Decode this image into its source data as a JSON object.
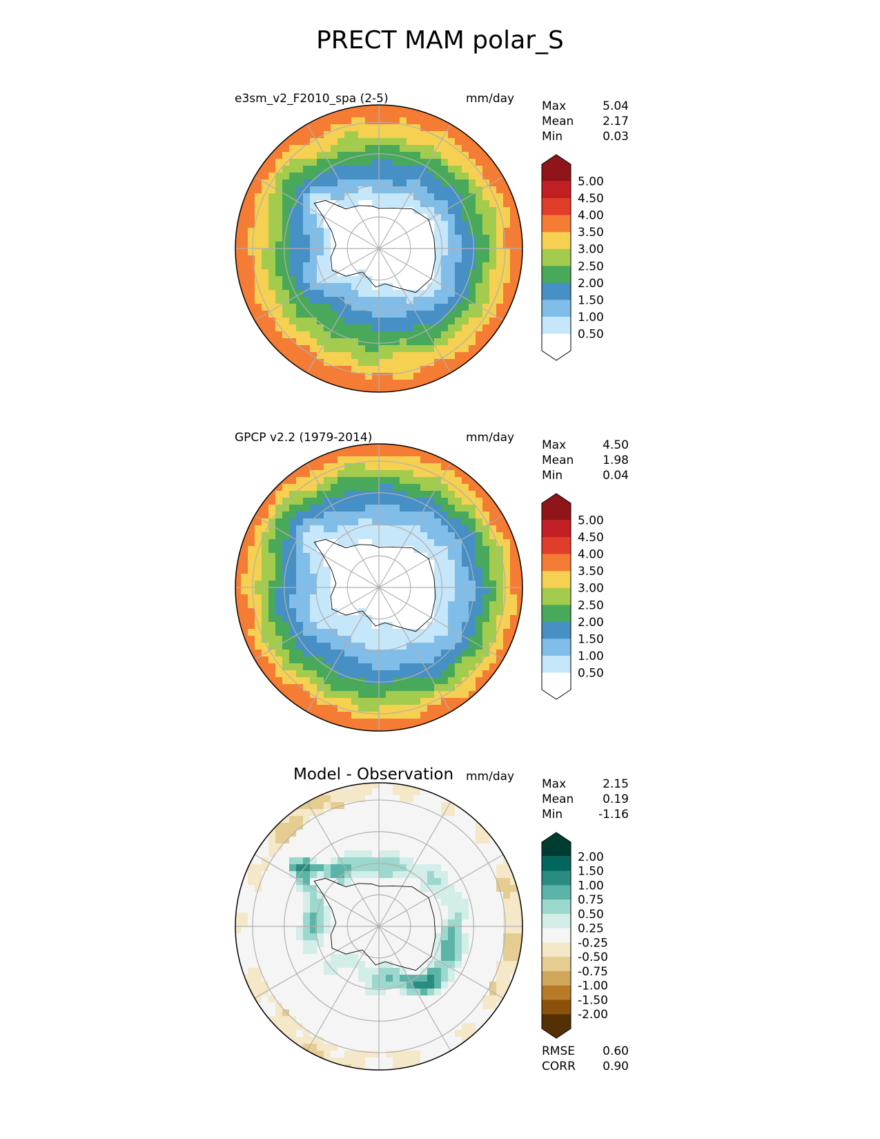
{
  "figure": {
    "title": "PRECT MAM polar_S"
  },
  "chart_data": [
    {
      "type": "heatmap",
      "projection": "south-polar-stereographic",
      "label": "e3sm_v2_F2010_spa (2-5)",
      "units": "mm/day",
      "stats": [
        {
          "name": "Max",
          "value": "5.04"
        },
        {
          "name": "Mean",
          "value": "2.17"
        },
        {
          "name": "Min",
          "value": "0.03"
        }
      ],
      "colorbar": {
        "levels": [
          "0.50",
          "1.00",
          "1.50",
          "2.00",
          "2.50",
          "3.00",
          "3.50",
          "4.00",
          "4.50",
          "5.00"
        ],
        "colors": [
          "#ffffff",
          "#c6e6f9",
          "#80bde8",
          "#4690c5",
          "#49a95a",
          "#a3cc4e",
          "#f6d050",
          "#f57c35",
          "#e03d2a",
          "#c21f24",
          "#8f1519"
        ]
      },
      "field": "model",
      "zones": [
        {
          "from": 0,
          "to": 0.33,
          "value": 0.3
        },
        {
          "from": 0.33,
          "to": 0.42,
          "value": 0.8
        },
        {
          "from": 0.42,
          "to": 0.52,
          "value": 1.3
        },
        {
          "from": 0.52,
          "to": 0.62,
          "value": 1.8
        },
        {
          "from": 0.62,
          "to": 0.72,
          "value": 2.3
        },
        {
          "from": 0.72,
          "to": 0.8,
          "value": 2.8
        },
        {
          "from": 0.8,
          "to": 0.9,
          "value": 3.3
        },
        {
          "from": 0.9,
          "to": 1.0,
          "value": 3.8
        }
      ]
    },
    {
      "type": "heatmap",
      "projection": "south-polar-stereographic",
      "label": "GPCP v2.2 (1979-2014)",
      "units": "mm/day",
      "stats": [
        {
          "name": "Max",
          "value": "4.50"
        },
        {
          "name": "Mean",
          "value": "1.98"
        },
        {
          "name": "Min",
          "value": "0.04"
        }
      ],
      "colorbar": {
        "levels": [
          "0.50",
          "1.00",
          "1.50",
          "2.00",
          "2.50",
          "3.00",
          "3.50",
          "4.00",
          "4.50",
          "5.00"
        ],
        "colors": [
          "#ffffff",
          "#c6e6f9",
          "#80bde8",
          "#4690c5",
          "#49a95a",
          "#a3cc4e",
          "#f6d050",
          "#f57c35",
          "#e03d2a",
          "#c21f24",
          "#8f1519"
        ]
      },
      "field": "obs",
      "zones": [
        {
          "from": 0,
          "to": 0.33,
          "value": 0.3
        },
        {
          "from": 0.33,
          "to": 0.48,
          "value": 0.8
        },
        {
          "from": 0.48,
          "to": 0.6,
          "value": 1.3
        },
        {
          "from": 0.6,
          "to": 0.7,
          "value": 1.8
        },
        {
          "from": 0.7,
          "to": 0.78,
          "value": 2.3
        },
        {
          "from": 0.78,
          "to": 0.85,
          "value": 2.8
        },
        {
          "from": 0.85,
          "to": 0.93,
          "value": 3.3
        },
        {
          "from": 0.93,
          "to": 1.0,
          "value": 3.8
        }
      ]
    },
    {
      "type": "heatmap",
      "projection": "south-polar-stereographic",
      "label": "Model - Observation",
      "units": "mm/day",
      "stats": [
        {
          "name": "Max",
          "value": "2.15"
        },
        {
          "name": "Mean",
          "value": "0.19"
        },
        {
          "name": "Min",
          "value": "-1.16"
        }
      ],
      "colorbar": {
        "levels": [
          "-2.00",
          "-1.50",
          "-1.00",
          "-0.75",
          "-0.50",
          "-0.25",
          "0.25",
          "0.50",
          "0.75",
          "1.00",
          "1.50",
          "2.00"
        ],
        "colors": [
          "#543005",
          "#8c510a",
          "#b87a27",
          "#d0a55c",
          "#e5cc90",
          "#f5e8c8",
          "#f5f5f5",
          "#d3ede8",
          "#9cd8cd",
          "#5cb4a9",
          "#2a8c81",
          "#00665e",
          "#003c30"
        ]
      },
      "field": "diff",
      "metrics": [
        {
          "name": "RMSE",
          "value": "0.60"
        },
        {
          "name": "CORR",
          "value": "0.90"
        }
      ]
    }
  ]
}
